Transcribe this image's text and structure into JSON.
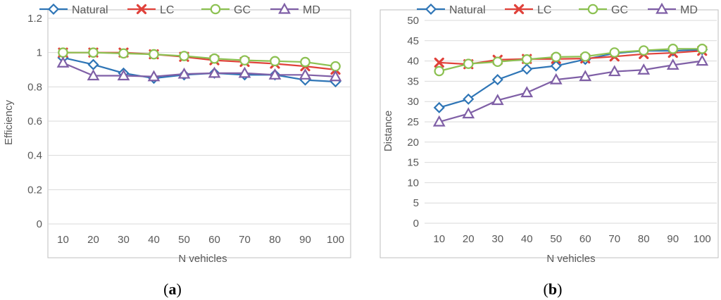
{
  "chart_data": [
    {
      "type": "line",
      "caption_label": "a",
      "xlabel": "N vehicles",
      "ylabel": "Efficiency",
      "categories": [
        "10",
        "20",
        "30",
        "40",
        "50",
        "60",
        "70",
        "80",
        "90",
        "100"
      ],
      "ylim": [
        0,
        1.2
      ],
      "yticks": [
        "0",
        "0.2",
        "0.4",
        "0.6",
        "0.8",
        "1",
        "1.2"
      ],
      "ytick_values": [
        0,
        0.2,
        0.4,
        0.6,
        0.8,
        1.0,
        1.2
      ],
      "grid": true,
      "legend_position": "top",
      "series": [
        {
          "name": "Natural",
          "values": [
            0.97,
            0.93,
            0.88,
            0.85,
            0.87,
            0.88,
            0.87,
            0.87,
            0.84,
            0.83
          ]
        },
        {
          "name": "LC",
          "values": [
            1.0,
            1.0,
            1.0,
            0.99,
            0.975,
            0.955,
            0.945,
            0.935,
            0.92,
            0.9
          ]
        },
        {
          "name": "GC",
          "values": [
            1.0,
            1.0,
            0.995,
            0.99,
            0.98,
            0.965,
            0.955,
            0.95,
            0.945,
            0.92
          ]
        },
        {
          "name": "MD",
          "values": [
            0.94,
            0.865,
            0.865,
            0.86,
            0.875,
            0.88,
            0.88,
            0.87,
            0.87,
            0.86
          ]
        }
      ]
    },
    {
      "type": "line",
      "caption_label": "b",
      "xlabel": "N vehicles",
      "ylabel": "Distance",
      "categories": [
        "10",
        "20",
        "30",
        "40",
        "50",
        "60",
        "70",
        "80",
        "90",
        "100"
      ],
      "ylim": [
        0,
        50
      ],
      "yticks": [
        "0",
        "5",
        "10",
        "15",
        "20",
        "25",
        "30",
        "35",
        "40",
        "45",
        "50"
      ],
      "ytick_values": [
        0,
        5,
        10,
        15,
        20,
        25,
        30,
        35,
        40,
        45,
        50
      ],
      "grid": true,
      "legend_position": "top",
      "series": [
        {
          "name": "Natural",
          "values": [
            28.5,
            30.6,
            35.4,
            38.0,
            38.8,
            40.4,
            41.9,
            42.5,
            42.5,
            42.8
          ]
        },
        {
          "name": "LC",
          "values": [
            39.6,
            39.2,
            40.3,
            40.5,
            40.5,
            40.6,
            41.1,
            41.7,
            42.0,
            42.5
          ]
        },
        {
          "name": "GC",
          "values": [
            37.5,
            39.3,
            39.8,
            40.4,
            41.0,
            41.1,
            42.1,
            42.6,
            43.0,
            43.0
          ]
        },
        {
          "name": "MD",
          "values": [
            25.0,
            27.0,
            30.3,
            32.2,
            35.4,
            36.2,
            37.4,
            37.8,
            39.0,
            40.0
          ]
        }
      ]
    }
  ],
  "legend": [
    {
      "name": "Natural",
      "color": "#2E75B6",
      "marker": "diamond"
    },
    {
      "name": "LC",
      "color": "#E0413A",
      "marker": "x"
    },
    {
      "name": "GC",
      "color": "#8CC152",
      "marker": "circle"
    },
    {
      "name": "MD",
      "color": "#7F5FA6",
      "marker": "triangle"
    }
  ],
  "colors": {
    "Natural": "#2E75B6",
    "LC": "#E0413A",
    "GC": "#8CC152",
    "MD": "#7F5FA6",
    "grid": "#D9D9D9",
    "frame": "#BFBFBF"
  }
}
